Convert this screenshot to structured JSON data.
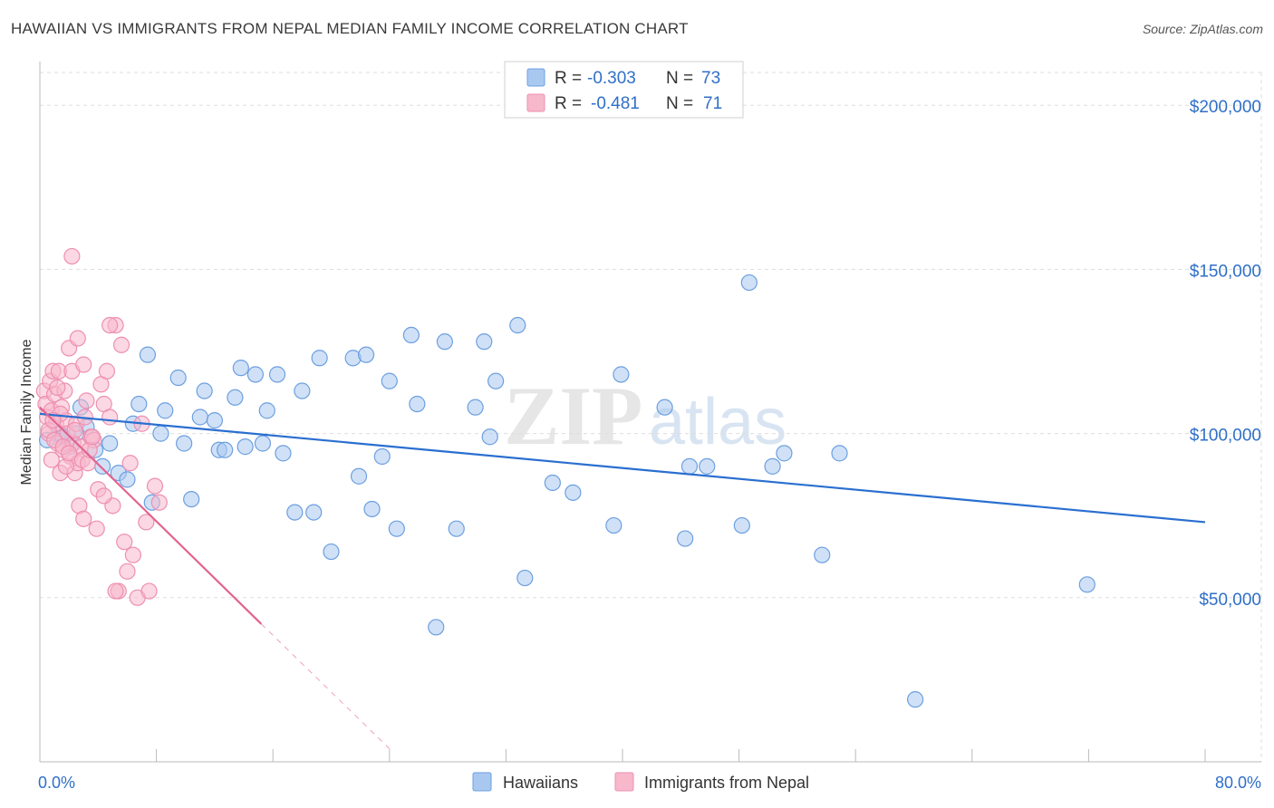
{
  "title": "HAWAIIAN VS IMMIGRANTS FROM NEPAL MEDIAN FAMILY INCOME CORRELATION CHART",
  "source": "Source: ZipAtlas.com",
  "watermark": {
    "part1": "ZIP",
    "part2": "atlas"
  },
  "colors": {
    "hawaiians_fill": "#a9c8f0",
    "hawaiians_stroke": "#6c9fe0",
    "hawaiians_line": "#2a6fd0",
    "nepal_fill": "#f7b8cc",
    "nepal_stroke": "#ee8fb0",
    "nepal_line": "#e2638f",
    "axis_text": "#2f6fc8",
    "grid": "#dddddd"
  },
  "legend": {
    "rows": [
      {
        "r_label": "R =",
        "r_value": "-0.303",
        "n_label": "N =",
        "n_value": "73"
      },
      {
        "r_label": "R =",
        "r_value": "-0.481",
        "n_label": "N =",
        "n_value": "71"
      }
    ]
  },
  "chart_data": {
    "type": "scatter",
    "title": "HAWAIIAN VS IMMIGRANTS FROM NEPAL MEDIAN FAMILY INCOME CORRELATION CHART",
    "xlabel": "",
    "ylabel": "Median Family Income",
    "xlim": [
      0,
      80
    ],
    "ylim": [
      0,
      210000
    ],
    "x_tick_labels": [
      "0.0%",
      "80.0%"
    ],
    "y_ticks": [
      50000,
      100000,
      150000,
      200000
    ],
    "y_tick_labels": [
      "$50,000",
      "$100,000",
      "$150,000",
      "$200,000"
    ],
    "series": [
      {
        "name": "Hawaiians",
        "trend": {
          "x0": 0,
          "y0": 106000,
          "x1": 80,
          "y1": 73000
        },
        "points": [
          [
            1.3,
            100000
          ],
          [
            1.6,
            99000
          ],
          [
            2.1,
            96000
          ],
          [
            2.8,
            108000
          ],
          [
            3.2,
            102000
          ],
          [
            3.8,
            95000
          ],
          [
            4.3,
            90000
          ],
          [
            4.8,
            97000
          ],
          [
            5.4,
            88000
          ],
          [
            6.0,
            86000
          ],
          [
            6.4,
            103000
          ],
          [
            6.8,
            109000
          ],
          [
            7.4,
            124000
          ],
          [
            7.7,
            79000
          ],
          [
            8.3,
            100000
          ],
          [
            8.6,
            107000
          ],
          [
            9.5,
            117000
          ],
          [
            9.9,
            97000
          ],
          [
            10.4,
            80000
          ],
          [
            11.0,
            105000
          ],
          [
            11.3,
            113000
          ],
          [
            12.0,
            104000
          ],
          [
            12.3,
            95000
          ],
          [
            12.7,
            95000
          ],
          [
            13.4,
            111000
          ],
          [
            13.8,
            120000
          ],
          [
            14.1,
            96000
          ],
          [
            14.8,
            118000
          ],
          [
            15.3,
            97000
          ],
          [
            15.6,
            107000
          ],
          [
            16.3,
            118000
          ],
          [
            16.7,
            94000
          ],
          [
            17.5,
            76000
          ],
          [
            18.0,
            113000
          ],
          [
            18.8,
            76000
          ],
          [
            19.2,
            123000
          ],
          [
            20.0,
            64000
          ],
          [
            21.5,
            123000
          ],
          [
            21.9,
            87000
          ],
          [
            22.4,
            124000
          ],
          [
            22.8,
            77000
          ],
          [
            23.5,
            93000
          ],
          [
            24.0,
            116000
          ],
          [
            24.5,
            71000
          ],
          [
            25.5,
            130000
          ],
          [
            25.9,
            109000
          ],
          [
            27.2,
            41000
          ],
          [
            27.8,
            128000
          ],
          [
            28.6,
            71000
          ],
          [
            29.9,
            108000
          ],
          [
            30.5,
            128000
          ],
          [
            30.9,
            99000
          ],
          [
            31.3,
            116000
          ],
          [
            32.8,
            133000
          ],
          [
            33.3,
            56000
          ],
          [
            35.2,
            85000
          ],
          [
            36.6,
            82000
          ],
          [
            39.4,
            72000
          ],
          [
            39.9,
            118000
          ],
          [
            42.9,
            108000
          ],
          [
            44.3,
            68000
          ],
          [
            44.6,
            90000
          ],
          [
            45.8,
            90000
          ],
          [
            48.2,
            72000
          ],
          [
            48.7,
            146000
          ],
          [
            50.3,
            90000
          ],
          [
            51.1,
            94000
          ],
          [
            53.7,
            63000
          ],
          [
            54.9,
            94000
          ],
          [
            60.1,
            19000
          ],
          [
            71.9,
            54000
          ],
          [
            0.5,
            98000
          ],
          [
            2.5,
            100000
          ]
        ]
      },
      {
        "name": "Immigrants from Nepal",
        "trend": {
          "x0": 0,
          "y0": 108000,
          "x1": 15.2,
          "y1": 42000,
          "dash_x1": 24,
          "dash_y1": 4000
        },
        "points": [
          [
            0.3,
            113000
          ],
          [
            0.4,
            109000
          ],
          [
            0.5,
            105000
          ],
          [
            0.6,
            100000
          ],
          [
            0.7,
            116000
          ],
          [
            0.8,
            107000
          ],
          [
            0.9,
            119000
          ],
          [
            1.0,
            112000
          ],
          [
            1.1,
            103000
          ],
          [
            1.2,
            97000
          ],
          [
            1.3,
            119000
          ],
          [
            1.4,
            88000
          ],
          [
            1.5,
            108000
          ],
          [
            1.6,
            95000
          ],
          [
            1.7,
            113000
          ],
          [
            1.8,
            104000
          ],
          [
            1.9,
            100000
          ],
          [
            2.0,
            126000
          ],
          [
            2.1,
            93000
          ],
          [
            2.2,
            119000
          ],
          [
            2.3,
            97000
          ],
          [
            2.4,
            88000
          ],
          [
            2.5,
            103000
          ],
          [
            2.6,
            91000
          ],
          [
            2.7,
            78000
          ],
          [
            2.8,
            96000
          ],
          [
            2.9,
            92000
          ],
          [
            3.0,
            121000
          ],
          [
            3.1,
            105000
          ],
          [
            3.2,
            110000
          ],
          [
            3.3,
            91000
          ],
          [
            3.5,
            99000
          ],
          [
            3.7,
            98000
          ],
          [
            3.9,
            71000
          ],
          [
            4.0,
            83000
          ],
          [
            4.2,
            115000
          ],
          [
            4.4,
            109000
          ],
          [
            4.6,
            119000
          ],
          [
            4.8,
            105000
          ],
          [
            5.0,
            78000
          ],
          [
            5.2,
            133000
          ],
          [
            5.4,
            52000
          ],
          [
            5.6,
            127000
          ],
          [
            5.8,
            67000
          ],
          [
            6.0,
            58000
          ],
          [
            6.2,
            91000
          ],
          [
            6.4,
            63000
          ],
          [
            6.7,
            50000
          ],
          [
            7.0,
            103000
          ],
          [
            7.3,
            73000
          ],
          [
            7.5,
            52000
          ],
          [
            7.9,
            84000
          ],
          [
            8.2,
            79000
          ],
          [
            0.6,
            101000
          ],
          [
            1.0,
            98000
          ],
          [
            1.4,
            106000
          ],
          [
            1.8,
            90000
          ],
          [
            2.2,
            154000
          ],
          [
            2.6,
            129000
          ],
          [
            3.0,
            74000
          ],
          [
            3.4,
            95000
          ],
          [
            4.8,
            133000
          ],
          [
            5.2,
            52000
          ],
          [
            0.9,
            104000
          ],
          [
            1.6,
            96000
          ],
          [
            2.4,
            101000
          ],
          [
            3.6,
            99000
          ],
          [
            4.4,
            81000
          ],
          [
            2.0,
            94000
          ],
          [
            1.2,
            114000
          ],
          [
            0.8,
            92000
          ]
        ]
      }
    ]
  },
  "bottom_legend": [
    "Hawaiians",
    "Immigrants from Nepal"
  ]
}
